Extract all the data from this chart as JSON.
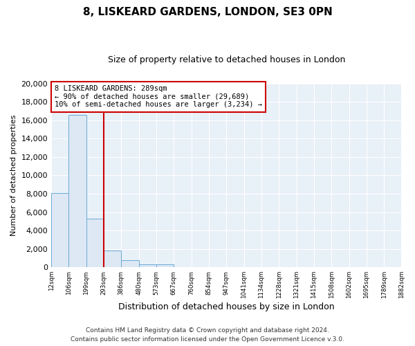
{
  "title": "8, LISKEARD GARDENS, LONDON, SE3 0PN",
  "subtitle": "Size of property relative to detached houses in London",
  "xlabel": "Distribution of detached houses by size in London",
  "ylabel": "Number of detached properties",
  "bin_labels": [
    "12sqm",
    "106sqm",
    "199sqm",
    "293sqm",
    "386sqm",
    "480sqm",
    "573sqm",
    "667sqm",
    "760sqm",
    "854sqm",
    "947sqm",
    "1041sqm",
    "1134sqm",
    "1228sqm",
    "1321sqm",
    "1415sqm",
    "1508sqm",
    "1602sqm",
    "1695sqm",
    "1789sqm",
    "1882sqm"
  ],
  "bar_values": [
    8100,
    16600,
    5300,
    1800,
    800,
    300,
    300,
    0,
    0,
    0,
    0,
    0,
    0,
    0,
    0,
    0,
    0,
    0,
    0,
    0
  ],
  "bar_color": "#dde8f4",
  "bar_edge_color": "#6aaad4",
  "property_line_color": "#cc0000",
  "annotation_line1": "8 LISKEARD GARDENS: 289sqm",
  "annotation_line2": "← 90% of detached houses are smaller (29,689)",
  "annotation_line3": "10% of semi-detached houses are larger (3,234) →",
  "annotation_box_edge": "#cc0000",
  "ylim": [
    0,
    20000
  ],
  "yticks": [
    0,
    2000,
    4000,
    6000,
    8000,
    10000,
    12000,
    14000,
    16000,
    18000,
    20000
  ],
  "footer1": "Contains HM Land Registry data © Crown copyright and database right 2024.",
  "footer2": "Contains public sector information licensed under the Open Government Licence v.3.0.",
  "bg_color": "#ffffff",
  "plot_bg_color": "#e8f0f8"
}
